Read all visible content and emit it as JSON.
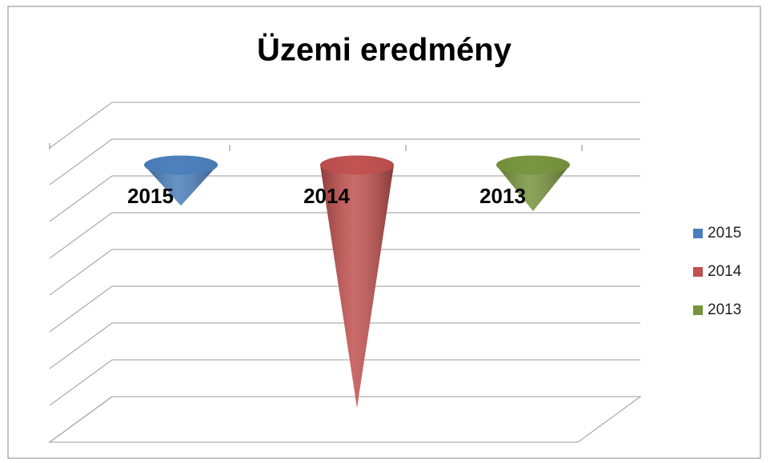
{
  "chart_data": {
    "type": "cone3d",
    "title": "Üzemi eredmény",
    "categories": [
      "2015",
      "2014",
      "2013"
    ],
    "values": [
      -1.1,
      -6.6,
      -1.25
    ],
    "colors": [
      "#4a7ebb",
      "#c0504d",
      "#77933c"
    ],
    "ylim": [
      -7,
      1
    ],
    "yticks": [
      -7,
      -6,
      -5,
      -4,
      -3,
      -2,
      -1,
      0,
      1
    ],
    "grid": true,
    "legend": "right"
  }
}
